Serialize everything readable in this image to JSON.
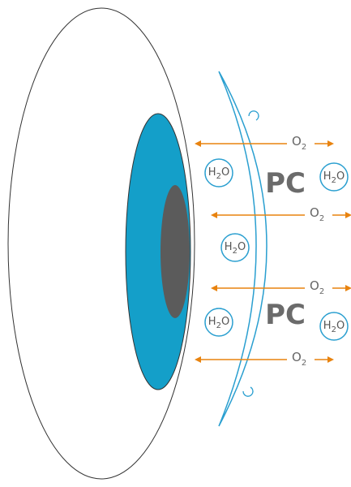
{
  "lens_labels": [
    "PC",
    "PC"
  ],
  "oxygen": [
    {
      "symbol": "O",
      "subscript": "2"
    },
    {
      "symbol": "O",
      "subscript": "2"
    },
    {
      "symbol": "O",
      "subscript": "2"
    },
    {
      "symbol": "O",
      "subscript": "2"
    }
  ],
  "water": [
    {
      "symbol": "H",
      "subscript": "2",
      "tail": "O"
    },
    {
      "symbol": "H",
      "subscript": "2",
      "tail": "O"
    },
    {
      "symbol": "H",
      "subscript": "2",
      "tail": "O"
    },
    {
      "symbol": "H",
      "subscript": "2",
      "tail": "O"
    },
    {
      "symbol": "H",
      "subscript": "2",
      "tail": "O"
    }
  ]
}
